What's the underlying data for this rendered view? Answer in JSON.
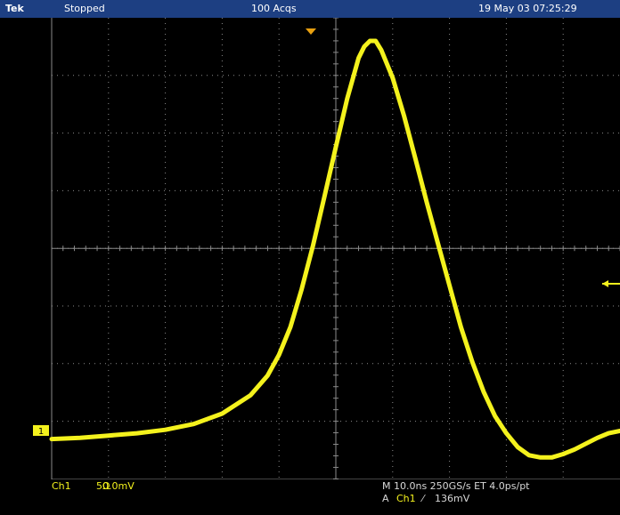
{
  "header": {
    "brand": "Tek",
    "status": "Stopped",
    "acquisitions": "100 Acqs",
    "datetime": "19 May 03 07:25:29"
  },
  "channel": {
    "label": "Ch1",
    "scale": "50.0mV",
    "impedance_symbol": "Ω",
    "ground_marker": "1",
    "color": "#f4f21d"
  },
  "timebase": {
    "readout": "M 10.0ns 250GS/s ET 4.0ps/pt"
  },
  "trigger": {
    "mode_label": "A",
    "channel": "Ch1",
    "slope_symbol": "⁄",
    "level": "136mV"
  },
  "colors": {
    "background": "#000000",
    "titlebar": "#1d3f82",
    "graticule": "#8a8a8a",
    "trace": "#f4f21d",
    "trigger_marker": "#e8a010"
  },
  "chart_data": {
    "type": "line",
    "title": "",
    "xlabel": "",
    "ylabel": "",
    "x_units": "ns",
    "y_units": "mV",
    "xlim": [
      -50,
      50
    ],
    "ylim": [
      -200,
      200
    ],
    "grid": true,
    "series": [
      {
        "values_x": [
          -50,
          -45,
          -40,
          -35,
          -30,
          -25,
          -20,
          -15,
          -12,
          -10,
          -8,
          -6,
          -4,
          -2,
          0,
          2,
          4,
          5,
          6,
          7,
          8,
          10,
          12,
          14,
          16,
          18,
          20,
          22,
          24,
          26,
          28,
          30,
          32,
          34,
          36,
          38,
          40,
          42,
          44,
          46,
          48,
          50
        ],
        "values_y": [
          -165,
          -164,
          -162,
          -160,
          -157,
          -152,
          -143,
          -127,
          -110,
          -92,
          -68,
          -35,
          3,
          45,
          88,
          130,
          165,
          175,
          180,
          180,
          172,
          148,
          115,
          78,
          40,
          4,
          -32,
          -68,
          -98,
          -124,
          -145,
          -160,
          -172,
          -179,
          -181,
          -181,
          -178,
          -174,
          -169,
          -164,
          -160,
          -158
        ]
      }
    ]
  }
}
